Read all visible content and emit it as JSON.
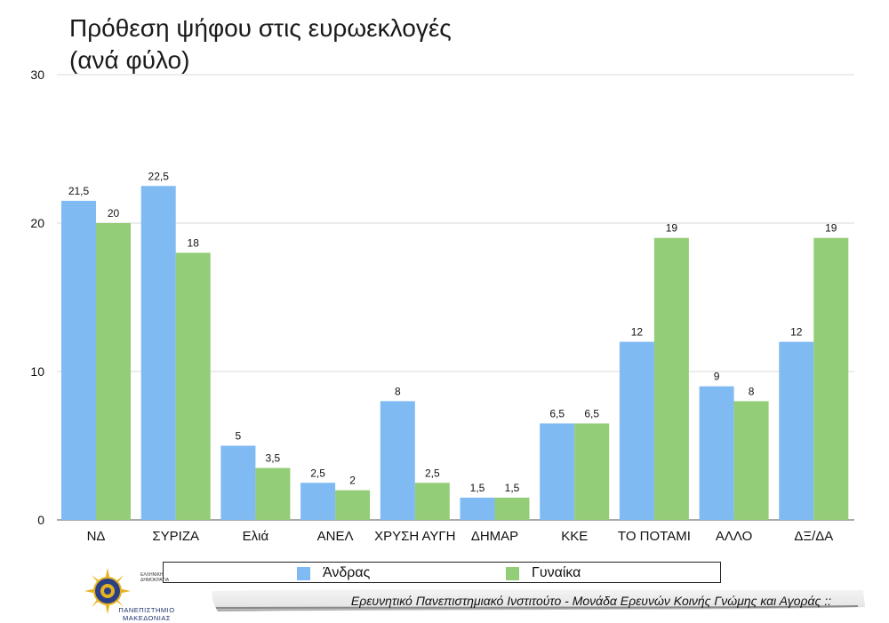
{
  "title": {
    "line1": "Πρόθεση ψήφου στις ευρωεκλογές",
    "line2": "(ανά φύλο)"
  },
  "chart_data": {
    "type": "bar",
    "categories": [
      "ΝΔ",
      "ΣΥΡΙΖΑ",
      "Ελιά",
      "ΑΝΕΛ",
      "ΧΡΥΣΗ ΑΥΓΗ",
      "ΔΗΜΑΡ",
      "ΚΚΕ",
      "ΤΟ ΠΟΤΑΜΙ",
      "ΑΛΛΟ",
      "ΔΞ/ΔΑ"
    ],
    "series": [
      {
        "name": "Άνδρας",
        "color": "#7fbaf3",
        "values": [
          21.5,
          22.5,
          5,
          2.5,
          8,
          1.5,
          6.5,
          12,
          9,
          12
        ]
      },
      {
        "name": "Γυναίκα",
        "color": "#93cd78",
        "values": [
          20,
          18,
          3.5,
          2,
          2.5,
          1.5,
          6.5,
          19,
          8,
          19
        ]
      }
    ],
    "ylim": [
      0,
      30
    ],
    "yticks": [
      0,
      10,
      20,
      30
    ],
    "grid": true,
    "legend_position": "bottom",
    "decimal_separator": ","
  },
  "logo": {
    "org_mark": "ΕΛΛΗΝΙΚΗ ΔΗΜΟΚΡΑΤΙΑ",
    "university": "ΠΑΝΕΠΙΣΤΗΜΙΟ ΜΑΚΕΔΟΝΙΑΣ"
  },
  "footer": {
    "text": "Ερευνητικό Πανεπιστημιακό Ινστιτούτο - Μονάδα Ερευνών Κοινής Γνώμης και Αγοράς ::"
  }
}
